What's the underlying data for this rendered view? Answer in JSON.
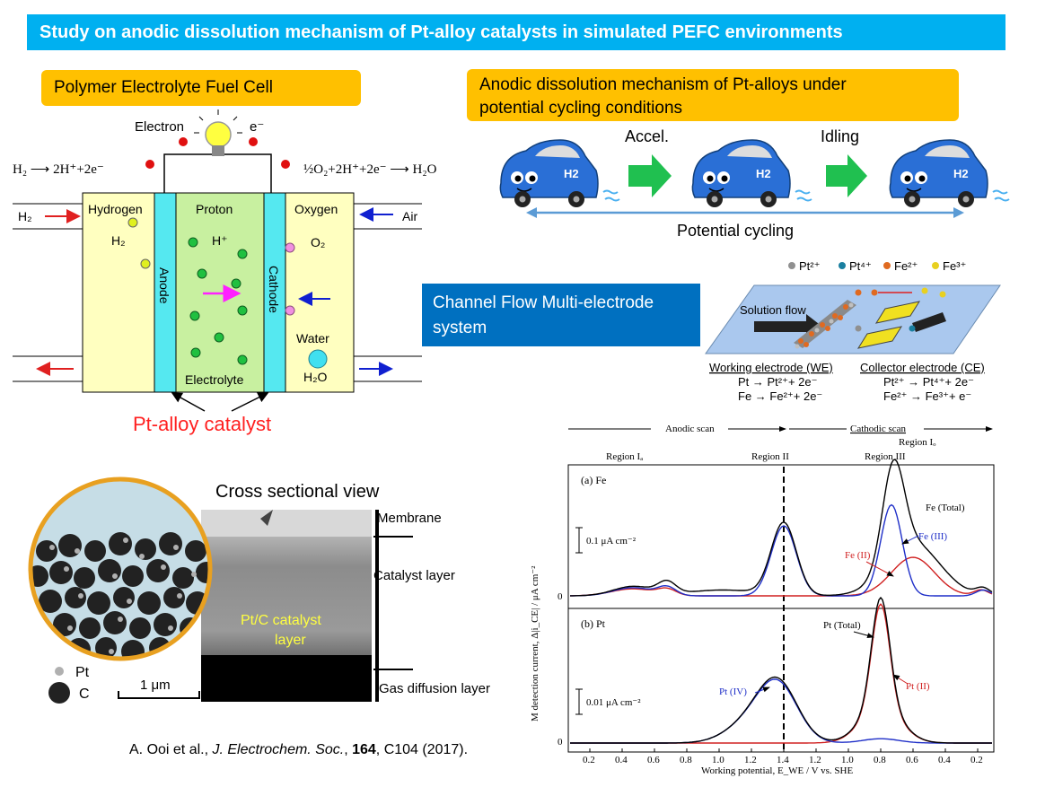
{
  "title": "Study on anodic dissolution mechanism of Pt-alloy catalysts in simulated PEFC environments",
  "pefc_label": "Polymer Electrolyte Fuel Cell",
  "mechanism_label_line1": "Anodic dissolution mechanism of Pt-alloys under",
  "mechanism_label_line2": "potential cycling conditions",
  "cfmd_label_line1": "Channel Flow Multi-electrode",
  "cfmd_label_line2": "system",
  "fuel_cell": {
    "electron": "Electron",
    "e_minus": "e⁻",
    "anode_reaction": "H₂ ⟶ 2H⁺+2e⁻",
    "cathode_reaction": "½O₂+2H⁺+2e⁻ ⟶ H₂O",
    "h2_in": "H₂",
    "air_in": "Air",
    "hydrogen": "Hydrogen",
    "h2": "H₂",
    "proton": "Proton",
    "h_plus": "H⁺",
    "oxygen": "Oxygen",
    "o2": "O₂",
    "anode": "Anode",
    "cathode": "Cathode",
    "water": "Water",
    "h2o": "H₂O",
    "electrolyte": "Electrolyte",
    "pt_alloy_catalyst": "Pt-alloy catalyst"
  },
  "cars": {
    "accel": "Accel.",
    "idling": "Idling",
    "badge": "H2",
    "potential_cycling": "Potential cycling"
  },
  "cfmd": {
    "legend": [
      {
        "label": "Pt²⁺",
        "color": "#909090"
      },
      {
        "label": "Pt⁴⁺",
        "color": "#1a7fa0"
      },
      {
        "label": "Fe²⁺",
        "color": "#e06a20"
      },
      {
        "label": "Fe³⁺",
        "color": "#e8d020"
      }
    ],
    "solution_flow": "Solution flow",
    "we_title": "Working electrode (WE)",
    "we_r1": "Pt → Pt²⁺+ 2e⁻",
    "we_r2": "Fe → Fe²⁺+ 2e⁻",
    "ce_title": "Collector electrode (CE)",
    "ce_r1": "Pt²⁺ → Pt⁴⁺+ 2e⁻",
    "ce_r2": "Fe²⁺ → Fe³⁺+ e⁻"
  },
  "cross_section": {
    "title": "Cross sectional view",
    "membrane": "Membrane",
    "catalyst_layer": "Catalyst layer",
    "gas_diffusion_layer": "Gas diffusion layer",
    "ptc_line1": "Pt/C catalyst",
    "ptc_line2": "layer",
    "scale": "1 μm",
    "legend_pt": "Pt",
    "legend_c": "C"
  },
  "plot": {
    "anodic_scan": "Anodic scan",
    "cathodic_scan": "Cathodic scan",
    "region_ia": "Region Iₐ",
    "region_ii": "Region II",
    "region_iii": "Region III",
    "region_ic": "Region Iₒ",
    "panel_a": "(a) Fe",
    "panel_b": "(b) Pt",
    "scale_a": "0.1 μA cm⁻²",
    "scale_b": "0.01 μA cm⁻²",
    "zero": "0",
    "fe_total": "Fe (Total)",
    "fe_iii": "Fe (III)",
    "fe_ii": "Fe (II)",
    "pt_total": "Pt (Total)",
    "pt_iv": "Pt (IV)",
    "pt_ii": "Pt (II)",
    "ylabel": "M detection current, Δ|i_CE| / μA cm⁻²",
    "xlabel": "Working potential, E_WE / V vs. SHE",
    "x_ticks": [
      "0.2",
      "0.4",
      "0.6",
      "0.8",
      "1.0",
      "1.2",
      "1.4",
      "1.2",
      "1.0",
      "0.8",
      "0.6",
      "0.4",
      "0.2"
    ],
    "colors": {
      "total": "#000000",
      "iii_iv": "#1f2fc8",
      "ii": "#d02020"
    }
  },
  "citation": {
    "prefix": "A. Ooi et al., ",
    "journal": "J. Electrochem. Soc.",
    "sep": ", ",
    "volume": "164",
    "rest": ", C104 (2017)."
  }
}
